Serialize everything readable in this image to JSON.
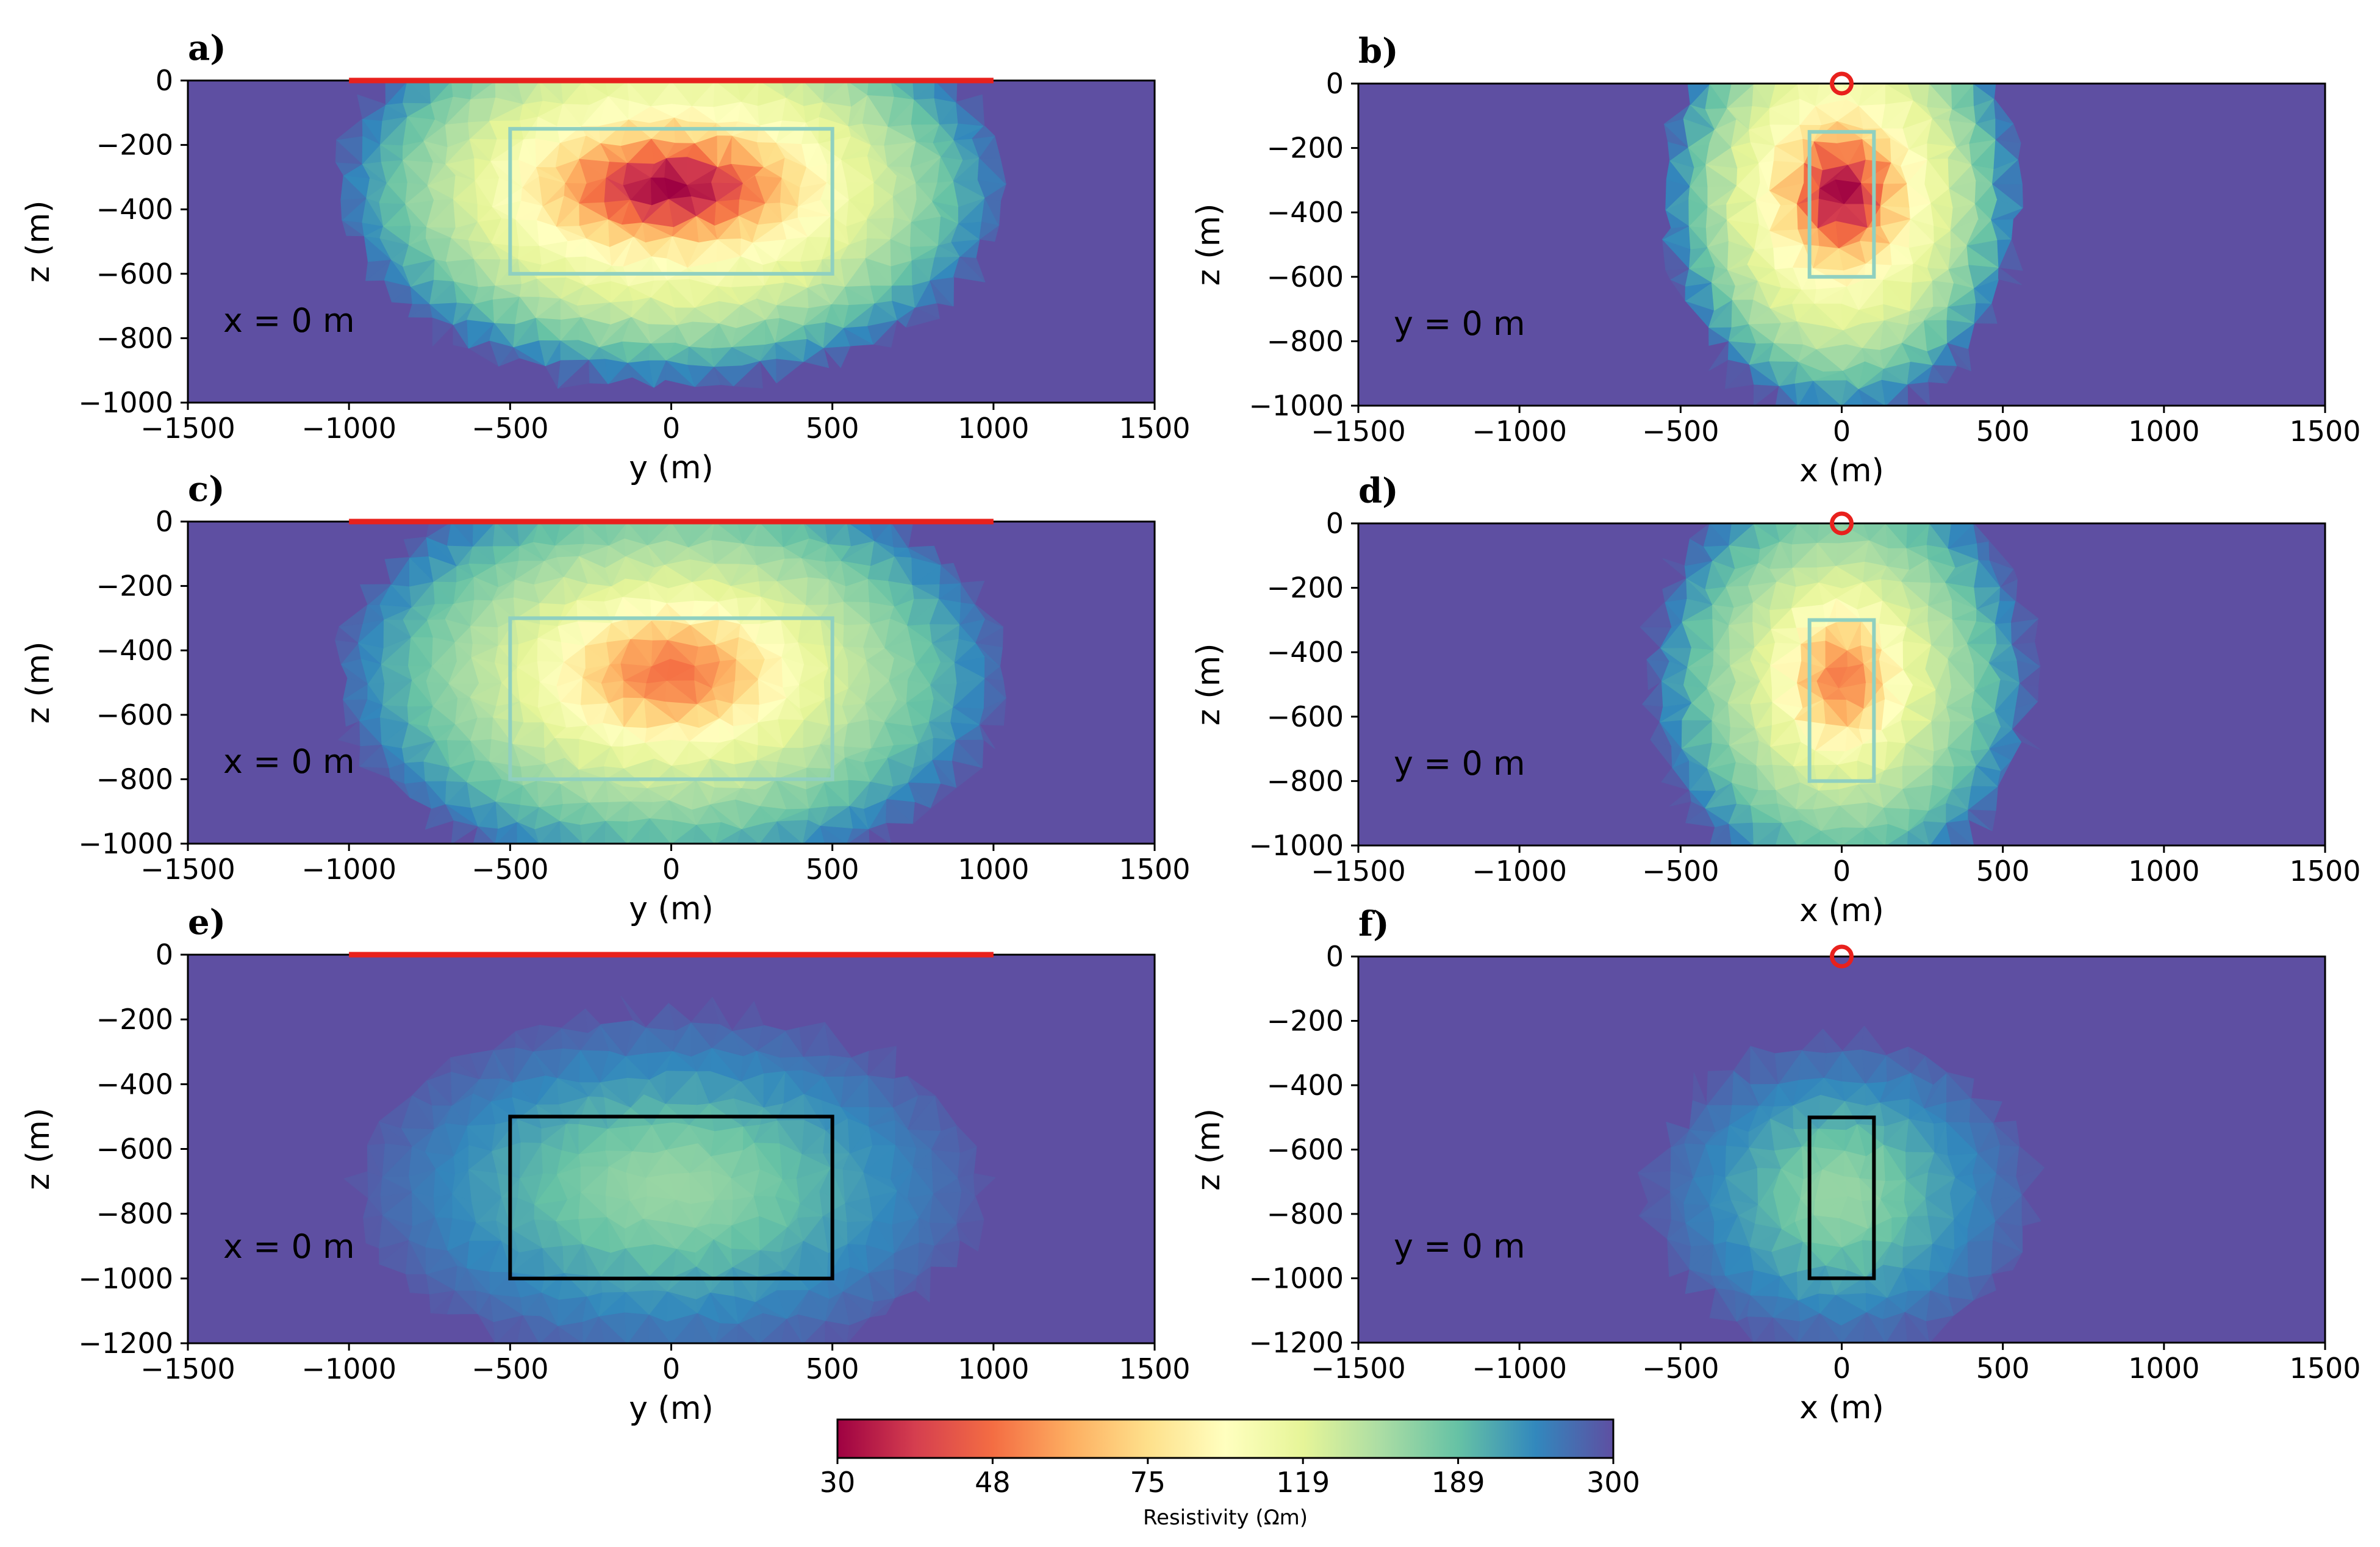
{
  "colorbar": {
    "label": "Resistivity (Ωm)",
    "ticks": [
      "30",
      "48",
      "75",
      "119",
      "189",
      "300"
    ],
    "colors": [
      "#9e0142",
      "#d53e4f",
      "#f46d43",
      "#fdae61",
      "#fee08b",
      "#ffffbf",
      "#e6f598",
      "#abdda4",
      "#66c2a5",
      "#3288bd",
      "#5e4fa2"
    ]
  },
  "colors": {
    "background_resistivity": "#5e4fa2",
    "electrode_line": "#e8211d",
    "box_light": "#8fd0c0",
    "box_dark": "#000000"
  },
  "chart_data": [
    {
      "type": "heatmap",
      "panel": "a)",
      "xlabel": "y (m)",
      "ylabel": "z (m)",
      "xlim": [
        -1500,
        1500
      ],
      "ylim": [
        -1000,
        0
      ],
      "xticks": [
        "−1500",
        "−1000",
        "−500",
        "0",
        "500",
        "1000",
        "1500"
      ],
      "yticks": [
        "0",
        "−200",
        "−400",
        "−600",
        "−800",
        "−1000"
      ],
      "section_label": "x = 0 m",
      "source_marker": {
        "type": "line",
        "x": [
          -1000,
          1000
        ]
      },
      "target_box": {
        "x": [
          -500,
          500
        ],
        "z": [
          -600,
          -150
        ]
      },
      "box_style": "light",
      "anomaly": {
        "center": [
          0,
          -330
        ],
        "spread": [
          420,
          180
        ],
        "halo": [
          1050,
          620
        ],
        "min_resistivity": 30
      }
    },
    {
      "type": "heatmap",
      "panel": "b)",
      "xlabel": "x (m)",
      "ylabel": "z (m)",
      "xlim": [
        -1500,
        1500
      ],
      "ylim": [
        -1000,
        0
      ],
      "xticks": [
        "−1500",
        "−1000",
        "−500",
        "0",
        "500",
        "1000",
        "1500"
      ],
      "yticks": [
        "0",
        "−200",
        "−400",
        "−600",
        "−800",
        "−1000"
      ],
      "section_label": "y = 0 m",
      "source_marker": {
        "type": "point",
        "x": 0
      },
      "target_box": {
        "x": [
          -100,
          100
        ],
        "z": [
          -600,
          -150
        ]
      },
      "box_style": "light",
      "anomaly": {
        "center": [
          0,
          -340
        ],
        "spread": [
          190,
          220
        ],
        "halo": [
          560,
          700
        ],
        "min_resistivity": 30
      }
    },
    {
      "type": "heatmap",
      "panel": "c)",
      "xlabel": "y (m)",
      "ylabel": "z (m)",
      "xlim": [
        -1500,
        1500
      ],
      "ylim": [
        -1000,
        0
      ],
      "xticks": [
        "−1500",
        "−1000",
        "−500",
        "0",
        "500",
        "1000",
        "1500"
      ],
      "yticks": [
        "0",
        "−200",
        "−400",
        "−600",
        "−800",
        "−1000"
      ],
      "section_label": "x = 0 m",
      "source_marker": {
        "type": "line",
        "x": [
          -1000,
          1000
        ]
      },
      "target_box": {
        "x": [
          -500,
          500
        ],
        "z": [
          -800,
          -300
        ]
      },
      "box_style": "light",
      "anomaly": {
        "center": [
          0,
          -470
        ],
        "spread": [
          400,
          230
        ],
        "halo": [
          1050,
          650
        ],
        "min_resistivity": 48
      }
    },
    {
      "type": "heatmap",
      "panel": "d)",
      "xlabel": "x (m)",
      "ylabel": "z (m)",
      "xlim": [
        -1500,
        1500
      ],
      "ylim": [
        -1000,
        0
      ],
      "xticks": [
        "−1500",
        "−1000",
        "−500",
        "0",
        "500",
        "1000",
        "1500"
      ],
      "yticks": [
        "0",
        "−200",
        "−400",
        "−600",
        "−800",
        "−1000"
      ],
      "section_label": "y = 0 m",
      "source_marker": {
        "type": "point",
        "x": 0
      },
      "target_box": {
        "x": [
          -100,
          100
        ],
        "z": [
          -800,
          -300
        ]
      },
      "box_style": "light",
      "anomaly": {
        "center": [
          0,
          -480
        ],
        "spread": [
          200,
          250
        ],
        "halo": [
          600,
          680
        ],
        "min_resistivity": 50
      }
    },
    {
      "type": "heatmap",
      "panel": "e)",
      "xlabel": "y (m)",
      "ylabel": "z (m)",
      "xlim": [
        -1500,
        1500
      ],
      "ylim": [
        -1200,
        0
      ],
      "xticks": [
        "−1500",
        "−1000",
        "−500",
        "0",
        "500",
        "1000",
        "1500"
      ],
      "yticks": [
        "0",
        "−200",
        "−400",
        "−600",
        "−800",
        "−1000",
        "−1200"
      ],
      "section_label": "x = 0 m",
      "source_marker": {
        "type": "line",
        "x": [
          -1000,
          1000
        ]
      },
      "target_box": {
        "x": [
          -500,
          500
        ],
        "z": [
          -1000,
          -500
        ]
      },
      "box_style": "dark",
      "anomaly": {
        "center": [
          0,
          -720
        ],
        "spread": [
          600,
          330
        ],
        "halo": [
          1000,
          560
        ],
        "min_resistivity": 160
      }
    },
    {
      "type": "heatmap",
      "panel": "f)",
      "xlabel": "x (m)",
      "ylabel": "z (m)",
      "xlim": [
        -1500,
        1500
      ],
      "ylim": [
        -1200,
        0
      ],
      "xticks": [
        "−1500",
        "−1000",
        "−500",
        "0",
        "500",
        "1000",
        "1500"
      ],
      "yticks": [
        "0",
        "−200",
        "−400",
        "−600",
        "−800",
        "−1000",
        "−1200"
      ],
      "section_label": "y = 0 m",
      "source_marker": {
        "type": "point",
        "x": 0
      },
      "target_box": {
        "x": [
          -100,
          100
        ],
        "z": [
          -1000,
          -500
        ]
      },
      "box_style": "dark",
      "anomaly": {
        "center": [
          0,
          -740
        ],
        "spread": [
          300,
          300
        ],
        "halo": [
          620,
          500
        ],
        "min_resistivity": 160
      }
    }
  ]
}
